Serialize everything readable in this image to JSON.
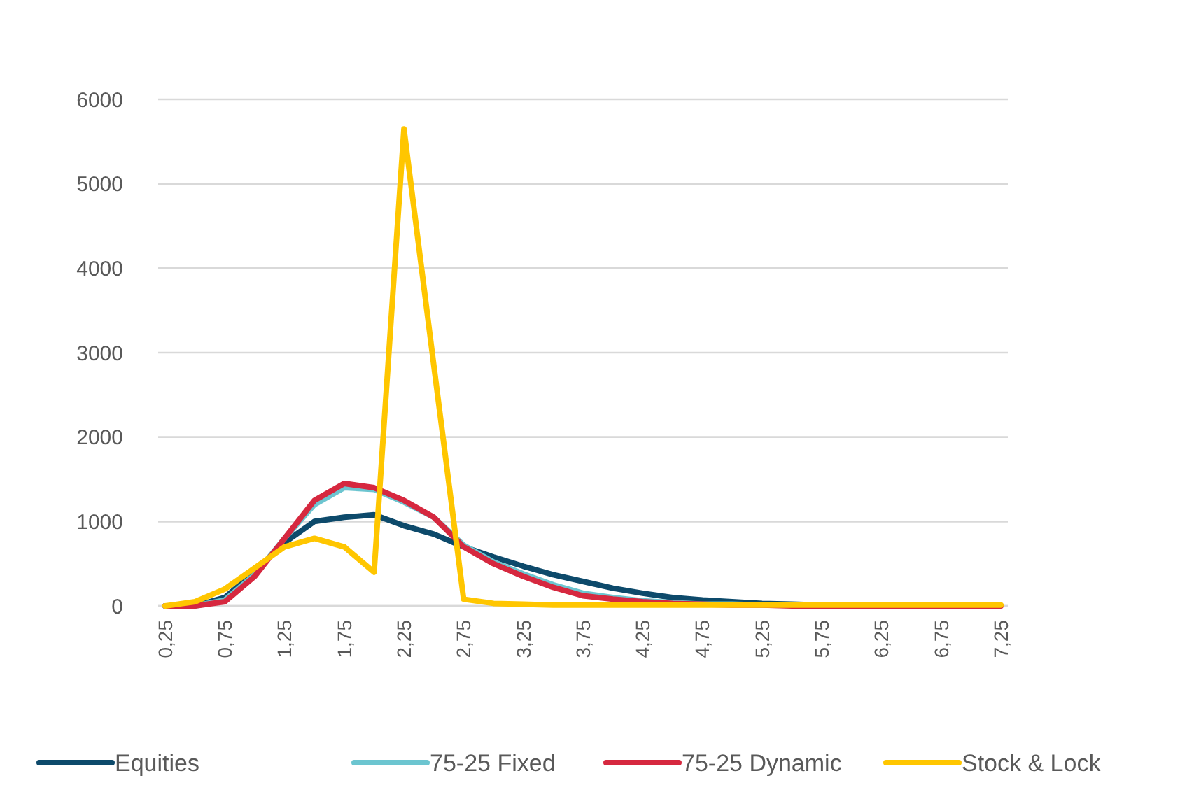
{
  "chart_data": {
    "type": "line",
    "categories": [
      "0,25",
      null,
      "0,75",
      null,
      "1,25",
      null,
      "1,75",
      null,
      "2,25",
      null,
      "2,75",
      null,
      "3,25",
      null,
      "3,75",
      null,
      "4,25",
      null,
      "4,75",
      null,
      "5,25",
      null,
      "5,75",
      null,
      "6,25",
      null,
      "6,75",
      null,
      "7,25"
    ],
    "series": [
      {
        "name": "Equities",
        "color": "#0d4a6b",
        "values": [
          0,
          0,
          100,
          400,
          750,
          1000,
          1050,
          1080,
          950,
          850,
          700,
          580,
          470,
          370,
          290,
          210,
          150,
          100,
          70,
          50,
          30,
          20,
          10,
          null,
          null,
          null,
          null,
          null,
          null
        ]
      },
      {
        "name": "75-25 Fixed",
        "color": "#6cc5d0",
        "values": [
          0,
          0,
          70,
          370,
          800,
          1200,
          1400,
          1380,
          1230,
          1050,
          720,
          520,
          380,
          250,
          150,
          100,
          60,
          40,
          20,
          20,
          10,
          10,
          0,
          null,
          null,
          null,
          null,
          null,
          null
        ]
      },
      {
        "name": "75-25 Dynamic",
        "color": "#d6283f",
        "values": [
          0,
          0,
          50,
          350,
          800,
          1250,
          1450,
          1400,
          1250,
          1050,
          700,
          500,
          350,
          220,
          120,
          80,
          50,
          30,
          20,
          10,
          10,
          0,
          0,
          0,
          0,
          0,
          0,
          0,
          0
        ]
      },
      {
        "name": "Stock & Lock",
        "color": "#ffc600",
        "values": [
          0,
          50,
          200,
          450,
          700,
          800,
          700,
          400,
          5650,
          2850,
          80,
          30,
          20,
          10,
          10,
          10,
          10,
          10,
          10,
          10,
          10,
          10,
          10,
          10,
          10,
          10,
          10,
          10,
          10
        ]
      }
    ],
    "ylim": [
      0,
      6000
    ],
    "yticks": [
      0,
      1000,
      2000,
      3000,
      4000,
      5000,
      6000
    ],
    "grid": "y",
    "legend": "bottom"
  }
}
